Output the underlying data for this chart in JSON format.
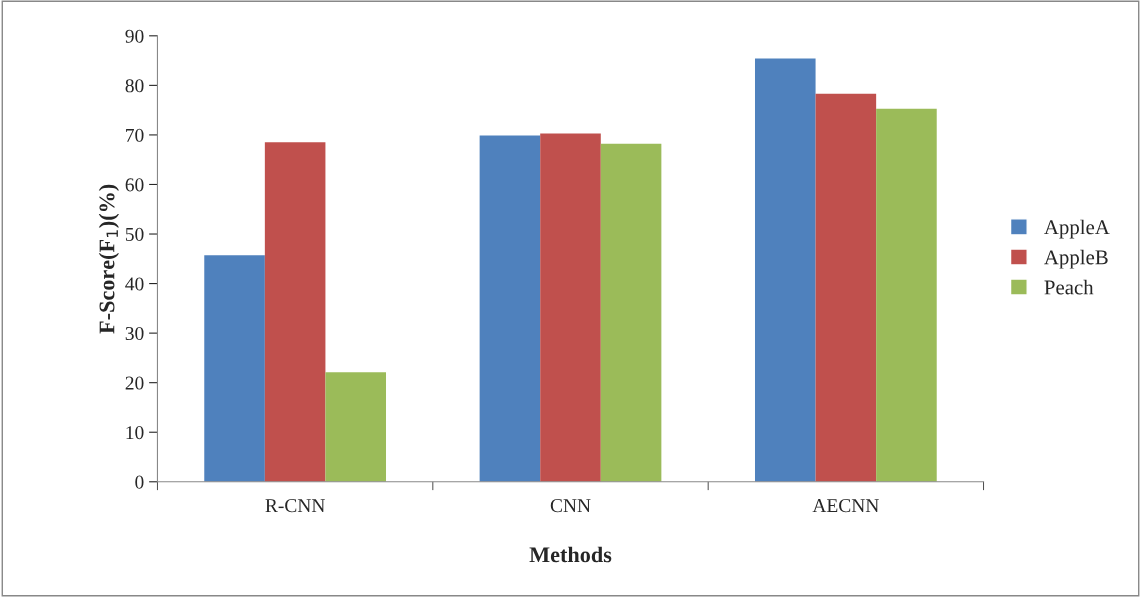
{
  "chart_data": {
    "type": "bar",
    "xlabel": "Methods",
    "ylabel": "F-Score(F$_{1}$)(%)",
    "categories": [
      "R-CNN",
      "CNN",
      "AECNN"
    ],
    "series": [
      {
        "name": "AppleA",
        "color": "#4f81bd",
        "values": [
          45.7,
          69.9,
          85.4
        ]
      },
      {
        "name": "AppleB",
        "color": "#c0504d",
        "values": [
          68.5,
          70.3,
          78.3
        ]
      },
      {
        "name": "Peach",
        "color": "#9bbb59",
        "values": [
          22.1,
          68.2,
          75.3
        ]
      }
    ],
    "ylim": [
      0,
      90
    ],
    "yticks": [
      0,
      10,
      20,
      30,
      40,
      50,
      60,
      70,
      80,
      90
    ],
    "grid": false,
    "legend": "right"
  }
}
